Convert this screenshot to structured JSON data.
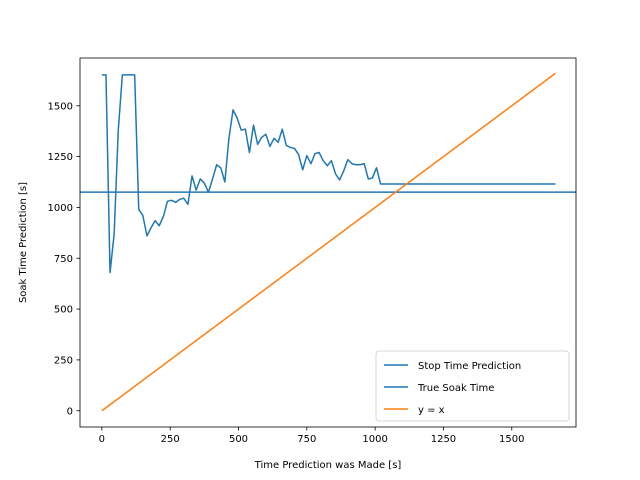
{
  "chart_data": {
    "type": "line",
    "title": "",
    "xlabel": "Time Prediction was Made [s]",
    "ylabel": "Soak Time Prediction [s]",
    "xlim": [
      -80,
      1735
    ],
    "ylim": [
      -80,
      1735
    ],
    "xticks": [
      0,
      250,
      500,
      750,
      1000,
      1250,
      1500
    ],
    "yticks": [
      0,
      250,
      500,
      750,
      1000,
      1250,
      1500
    ],
    "grid": false,
    "legend_position": "lower right",
    "series": [
      {
        "name": "Stop Time Prediction",
        "color": "#1f77b4",
        "x": [
          0,
          15,
          30,
          45,
          60,
          75,
          90,
          105,
          120,
          135,
          150,
          165,
          180,
          195,
          210,
          225,
          240,
          255,
          270,
          285,
          300,
          315,
          330,
          345,
          360,
          375,
          390,
          405,
          420,
          435,
          450,
          465,
          480,
          495,
          510,
          525,
          540,
          555,
          570,
          585,
          600,
          615,
          630,
          645,
          660,
          675,
          690,
          705,
          720,
          735,
          750,
          765,
          780,
          795,
          810,
          825,
          840,
          855,
          870,
          885,
          900,
          915,
          930,
          945,
          960,
          975,
          990,
          1005,
          1020,
          1035,
          1050,
          1065,
          1080,
          1095,
          1110,
          1125,
          1140,
          1660
        ],
        "y": [
          1652,
          1652,
          680,
          870,
          1380,
          1652,
          1652,
          1652,
          1652,
          990,
          960,
          860,
          900,
          935,
          910,
          955,
          1030,
          1035,
          1025,
          1040,
          1045,
          1015,
          1155,
          1085,
          1140,
          1120,
          1075,
          1140,
          1210,
          1195,
          1125,
          1340,
          1480,
          1440,
          1380,
          1385,
          1270,
          1405,
          1310,
          1345,
          1360,
          1300,
          1340,
          1320,
          1385,
          1305,
          1295,
          1290,
          1260,
          1185,
          1255,
          1215,
          1265,
          1270,
          1230,
          1205,
          1230,
          1165,
          1135,
          1180,
          1235,
          1215,
          1210,
          1210,
          1215,
          1140,
          1145,
          1195,
          1115,
          1115,
          1115,
          1115,
          1115,
          1115,
          1115,
          1115,
          1115,
          1115
        ]
      },
      {
        "name": "True Soak Time",
        "color": "#1f77b4",
        "kind": "hline",
        "y": 1075
      },
      {
        "name": "y = x",
        "color": "#ff7f0e",
        "x": [
          0,
          1660
        ],
        "y": [
          0,
          1660
        ]
      }
    ]
  }
}
